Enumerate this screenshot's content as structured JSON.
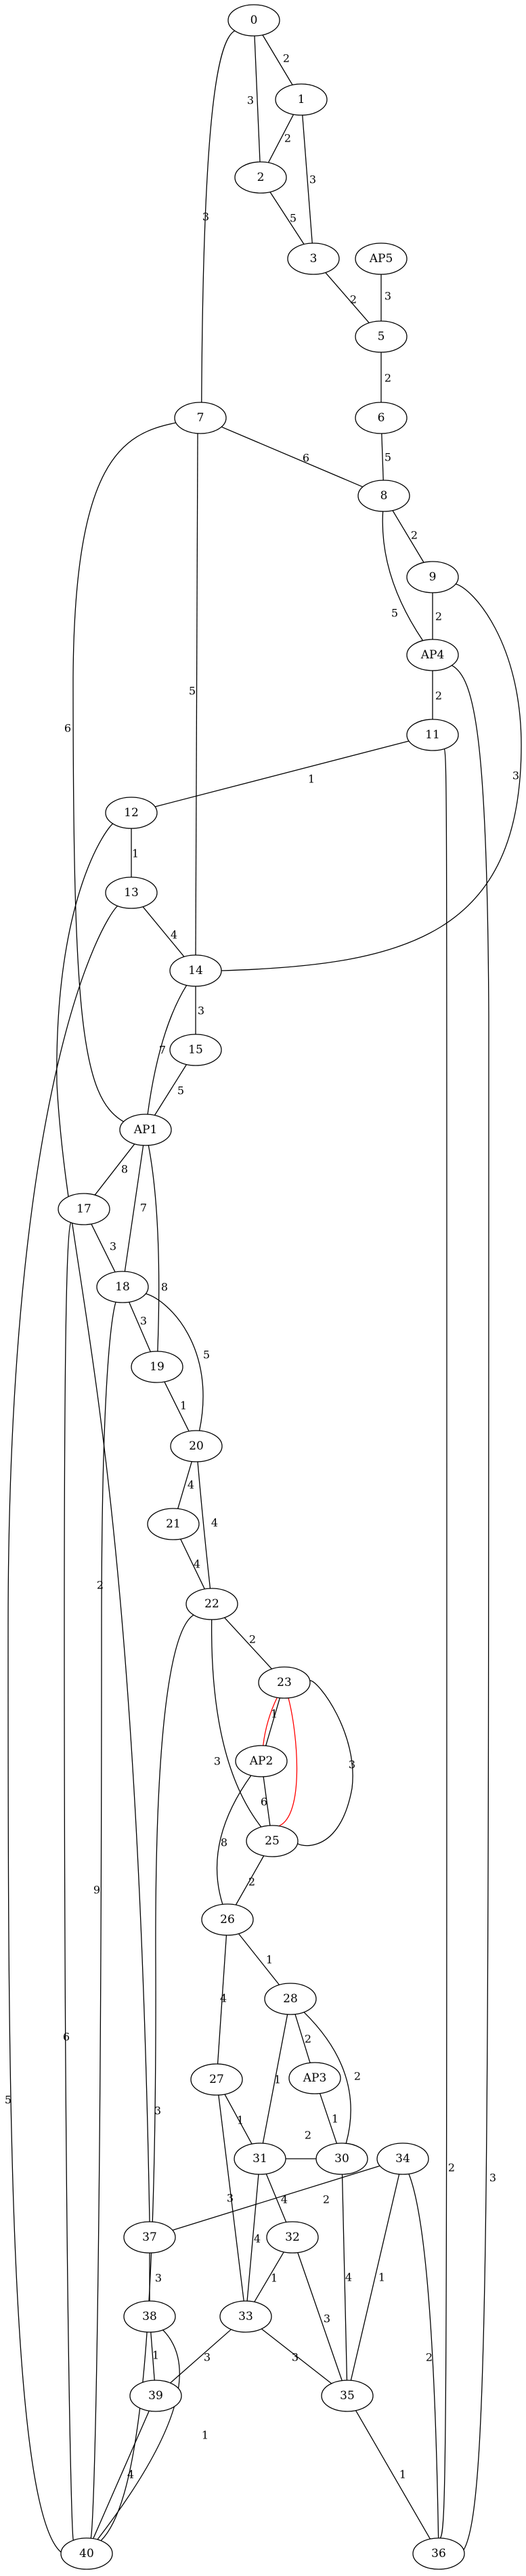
{
  "nodes": [
    {
      "id": "0",
      "label": "0"
    },
    {
      "id": "1",
      "label": "1"
    },
    {
      "id": "2",
      "label": "2"
    },
    {
      "id": "3",
      "label": "3"
    },
    {
      "id": "AP5",
      "label": "AP5"
    },
    {
      "id": "5",
      "label": "5"
    },
    {
      "id": "6",
      "label": "6"
    },
    {
      "id": "7",
      "label": "7"
    },
    {
      "id": "8",
      "label": "8"
    },
    {
      "id": "9",
      "label": "9"
    },
    {
      "id": "AP4",
      "label": "AP4"
    },
    {
      "id": "11",
      "label": "11"
    },
    {
      "id": "12",
      "label": "12"
    },
    {
      "id": "13",
      "label": "13"
    },
    {
      "id": "14",
      "label": "14"
    },
    {
      "id": "15",
      "label": "15"
    },
    {
      "id": "AP1",
      "label": "AP1"
    },
    {
      "id": "17",
      "label": "17"
    },
    {
      "id": "18",
      "label": "18"
    },
    {
      "id": "19",
      "label": "19"
    },
    {
      "id": "20",
      "label": "20"
    },
    {
      "id": "21",
      "label": "21"
    },
    {
      "id": "22",
      "label": "22"
    },
    {
      "id": "23",
      "label": "23"
    },
    {
      "id": "AP2",
      "label": "AP2"
    },
    {
      "id": "25",
      "label": "25"
    },
    {
      "id": "26",
      "label": "26"
    },
    {
      "id": "27",
      "label": "27"
    },
    {
      "id": "28",
      "label": "28"
    },
    {
      "id": "AP3",
      "label": "AP3"
    },
    {
      "id": "30",
      "label": "30"
    },
    {
      "id": "31",
      "label": "31"
    },
    {
      "id": "32",
      "label": "32"
    },
    {
      "id": "33",
      "label": "33"
    },
    {
      "id": "34",
      "label": "34"
    },
    {
      "id": "35",
      "label": "35"
    },
    {
      "id": "36",
      "label": "36"
    },
    {
      "id": "37",
      "label": "37"
    },
    {
      "id": "38",
      "label": "38"
    },
    {
      "id": "39",
      "label": "39"
    },
    {
      "id": "40",
      "label": "40"
    }
  ],
  "edges": [
    {
      "from": "0",
      "to": "1",
      "weight": "2"
    },
    {
      "from": "0",
      "to": "2",
      "weight": "3"
    },
    {
      "from": "0",
      "to": "7",
      "weight": "3"
    },
    {
      "from": "1",
      "to": "2",
      "weight": "2"
    },
    {
      "from": "1",
      "to": "3",
      "weight": "3"
    },
    {
      "from": "2",
      "to": "3",
      "weight": "5"
    },
    {
      "from": "3",
      "to": "5",
      "weight": "2"
    },
    {
      "from": "AP5",
      "to": "5",
      "weight": "3"
    },
    {
      "from": "5",
      "to": "6",
      "weight": "2"
    },
    {
      "from": "6",
      "to": "8",
      "weight": "5"
    },
    {
      "from": "7",
      "to": "8",
      "weight": "6"
    },
    {
      "from": "7",
      "to": "14",
      "weight": "5"
    },
    {
      "from": "7",
      "to": "AP1",
      "weight": "6"
    },
    {
      "from": "8",
      "to": "9",
      "weight": "2"
    },
    {
      "from": "8",
      "to": "AP4",
      "weight": "5"
    },
    {
      "from": "9",
      "to": "AP4",
      "weight": "2"
    },
    {
      "from": "9",
      "to": "14",
      "weight": "3"
    },
    {
      "from": "AP4",
      "to": "11",
      "weight": "2"
    },
    {
      "from": "AP4",
      "to": "36",
      "weight": "3"
    },
    {
      "from": "11",
      "to": "12",
      "weight": "1"
    },
    {
      "from": "11",
      "to": "36",
      "weight": "2"
    },
    {
      "from": "12",
      "to": "13",
      "weight": "1"
    },
    {
      "from": "12",
      "to": "37",
      "weight": "2"
    },
    {
      "from": "13",
      "to": "14",
      "weight": "4"
    },
    {
      "from": "13",
      "to": "40",
      "weight": "5"
    },
    {
      "from": "14",
      "to": "15",
      "weight": "3"
    },
    {
      "from": "14",
      "to": "AP1",
      "weight": "7"
    },
    {
      "from": "15",
      "to": "AP1",
      "weight": "5"
    },
    {
      "from": "AP1",
      "to": "17",
      "weight": "8"
    },
    {
      "from": "AP1",
      "to": "18",
      "weight": "7"
    },
    {
      "from": "AP1",
      "to": "19",
      "weight": "8"
    },
    {
      "from": "17",
      "to": "18",
      "weight": "3"
    },
    {
      "from": "17",
      "to": "40",
      "weight": "6"
    },
    {
      "from": "18",
      "to": "19",
      "weight": "3"
    },
    {
      "from": "18",
      "to": "20",
      "weight": "5"
    },
    {
      "from": "18",
      "to": "40",
      "weight": "9"
    },
    {
      "from": "19",
      "to": "20",
      "weight": "1"
    },
    {
      "from": "20",
      "to": "21",
      "weight": "4"
    },
    {
      "from": "20",
      "to": "22",
      "weight": "4"
    },
    {
      "from": "21",
      "to": "22",
      "weight": "4"
    },
    {
      "from": "22",
      "to": "23",
      "weight": "2"
    },
    {
      "from": "22",
      "to": "25",
      "weight": "3"
    },
    {
      "from": "22",
      "to": "40",
      "weight": "3"
    },
    {
      "from": "23",
      "to": "AP2",
      "weight": "1"
    },
    {
      "from": "23",
      "to": "AP2",
      "weight": "",
      "color": "#ff0000"
    },
    {
      "from": "23",
      "to": "25",
      "weight": "",
      "color": "#ff0000"
    },
    {
      "from": "23",
      "to": "25",
      "weight": "3"
    },
    {
      "from": "AP2",
      "to": "25",
      "weight": "6"
    },
    {
      "from": "AP2",
      "to": "26",
      "weight": "8"
    },
    {
      "from": "25",
      "to": "26",
      "weight": "2"
    },
    {
      "from": "26",
      "to": "28",
      "weight": "1"
    },
    {
      "from": "26",
      "to": "27",
      "weight": "4"
    },
    {
      "from": "27",
      "to": "31",
      "weight": "1"
    },
    {
      "from": "27",
      "to": "33",
      "weight": "3"
    },
    {
      "from": "28",
      "to": "AP3",
      "weight": "2"
    },
    {
      "from": "28",
      "to": "30",
      "weight": "2"
    },
    {
      "from": "28",
      "to": "31",
      "weight": "1"
    },
    {
      "from": "AP3",
      "to": "30",
      "weight": "1"
    },
    {
      "from": "30",
      "to": "31",
      "weight": "2"
    },
    {
      "from": "30",
      "to": "35",
      "weight": "4"
    },
    {
      "from": "31",
      "to": "32",
      "weight": "4"
    },
    {
      "from": "31",
      "to": "33",
      "weight": "4"
    },
    {
      "from": "32",
      "to": "33",
      "weight": "1"
    },
    {
      "from": "32",
      "to": "35",
      "weight": "3"
    },
    {
      "from": "33",
      "to": "35",
      "weight": "3"
    },
    {
      "from": "33",
      "to": "39",
      "weight": "3"
    },
    {
      "from": "34",
      "to": "37",
      "weight": "2"
    },
    {
      "from": "34",
      "to": "35",
      "weight": "1"
    },
    {
      "from": "34",
      "to": "36",
      "weight": "2"
    },
    {
      "from": "35",
      "to": "36",
      "weight": "1"
    },
    {
      "from": "37",
      "to": "38",
      "weight": "3"
    },
    {
      "from": "38",
      "to": "39",
      "weight": "1"
    },
    {
      "from": "38",
      "to": "40",
      "weight": "1"
    },
    {
      "from": "39",
      "to": "40",
      "weight": "4"
    }
  ]
}
